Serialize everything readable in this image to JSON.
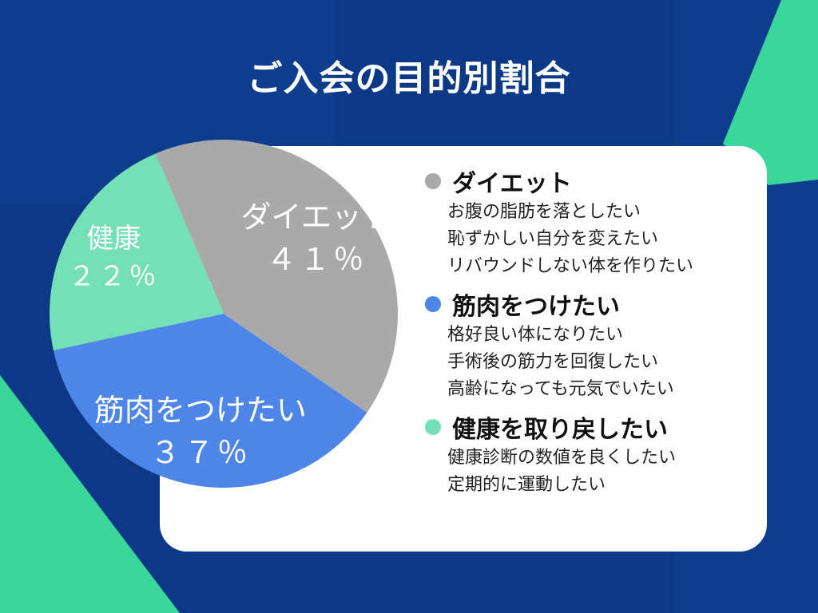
{
  "title": "ご入会の目的別割合",
  "colors": {
    "diet": "#a9a9a9",
    "muscle": "#4d86e8",
    "health": "#75e0b8",
    "accent": "#3bd69b",
    "navy": "#0c3888"
  },
  "chart_data": {
    "type": "pie",
    "slices": [
      {
        "name": "ダイエット",
        "percent_label": "４１％",
        "value": 41,
        "color": "#a9a9a9"
      },
      {
        "name": "筋肉をつけたい",
        "percent_label": "３７％",
        "value": 37,
        "color": "#4d86e8"
      },
      {
        "name": "健康",
        "percent_label": "２２％",
        "value": 22,
        "color": "#75e0b8"
      }
    ]
  },
  "legend": [
    {
      "title": "ダイエット",
      "color": "#a9a9a9",
      "items": [
        "お腹の脂肪を落としたい",
        "恥ずかしい自分を変えたい",
        "リバウンドしない体を作りたい"
      ]
    },
    {
      "title": "筋肉をつけたい",
      "color": "#4d86e8",
      "items": [
        "格好良い体になりたい",
        "手術後の筋力を回復したい",
        "高齢になっても元気でいたい"
      ]
    },
    {
      "title": "健康を取り戻したい",
      "color": "#75e0b8",
      "items": [
        "健康診断の数値を良くしたい",
        "定期的に運動したい"
      ]
    }
  ]
}
